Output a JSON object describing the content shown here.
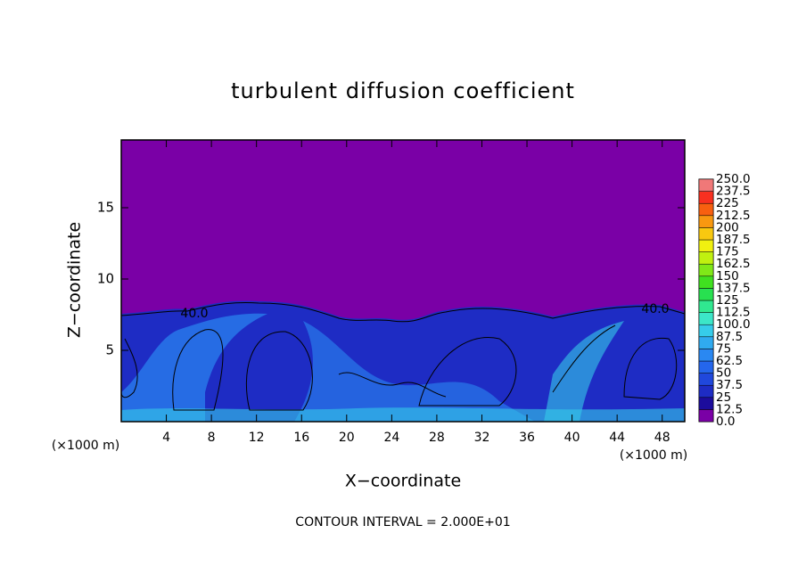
{
  "chart_data": {
    "type": "contour",
    "title": "turbulent diffusion coefficient",
    "x_label": "X−coordinate",
    "y_label": "Z−coordinate",
    "x_unit": "(×1000 m)",
    "y_unit": "(×1000 m)",
    "footnote": "CONTOUR INTERVAL = 2.000E+01",
    "contour_labels": [
      "40.0",
      "40.0"
    ],
    "xlim": [
      0,
      50
    ],
    "ylim": [
      0,
      19.75
    ],
    "xticks": [
      4,
      8,
      12,
      16,
      20,
      24,
      28,
      32,
      36,
      40,
      44,
      48
    ],
    "yticks": [
      5,
      10,
      15
    ],
    "colorbar": {
      "levels": [
        {
          "value": 0,
          "label": "0.0"
        },
        12.5,
        25,
        37.5,
        50,
        62.5,
        75,
        87.5,
        {
          "value": 100,
          "label": "100.0"
        },
        112.5,
        125,
        137.5,
        150,
        162.5,
        175,
        187.5,
        200,
        212.5,
        225,
        237.5,
        {
          "value": 250,
          "label": "250.0"
        }
      ],
      "colors": [
        "#7a00a6",
        "#1c0c9c",
        "#1e2cc4",
        "#2048dc",
        "#2466ec",
        "#2a88f2",
        "#30aaf0",
        "#36ccea",
        "#3ce6c8",
        "#30e890",
        "#28e050",
        "#40e020",
        "#80e818",
        "#c0f010",
        "#f0f010",
        "#f8c810",
        "#f89810",
        "#f86010",
        "#f83020",
        "#f07878"
      ]
    }
  }
}
